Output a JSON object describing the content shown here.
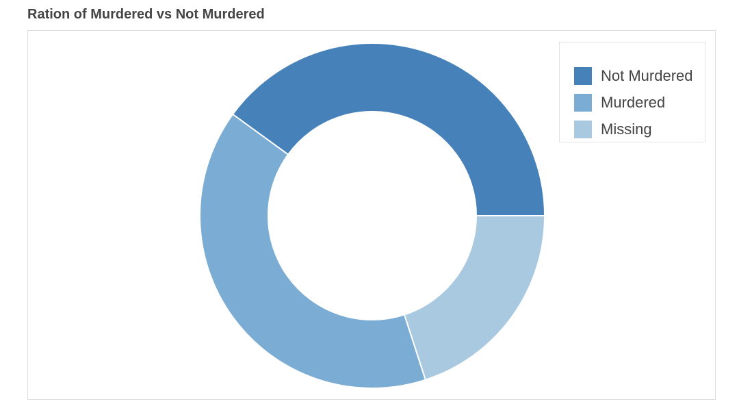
{
  "chart_data": {
    "type": "pie",
    "variant": "donut",
    "title": "Ration of Murdered vs Not Murdered",
    "categories": [
      "Not Murdered",
      "Murdered",
      "Missing"
    ],
    "values": [
      40,
      40,
      20
    ],
    "colors": [
      "#4681b9",
      "#7badd4",
      "#a8c9e0"
    ],
    "legend": {
      "position": "top-right",
      "entries": [
        "Not Murdered",
        "Murdered",
        "Missing"
      ]
    }
  }
}
